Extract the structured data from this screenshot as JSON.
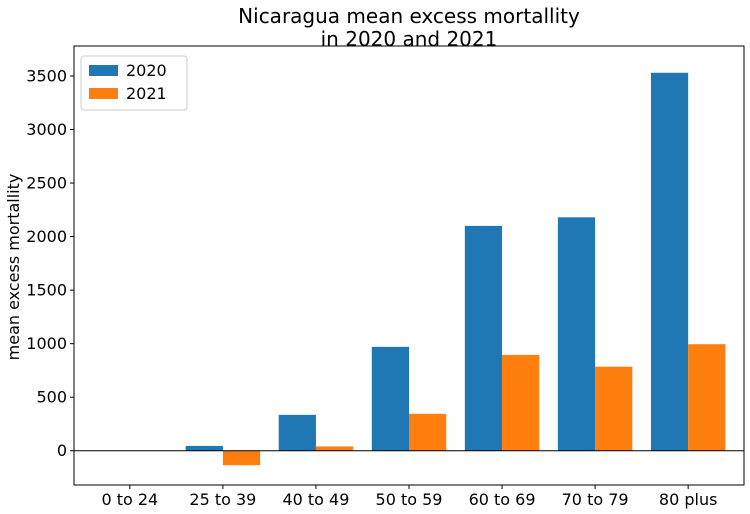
{
  "chart_data": {
    "type": "bar",
    "title": [
      "Nicaragua mean excess mortallity",
      "in 2020 and 2021"
    ],
    "xlabel": "",
    "ylabel": "mean excess mortallity",
    "categories": [
      "0 to 24",
      "25 to 39",
      "40 to 49",
      "50 to 59",
      "60 to 69",
      "70 to 79",
      "80 plus"
    ],
    "series": [
      {
        "name": "2020",
        "color": "#1f77b4",
        "values": [
          0,
          45,
          335,
          970,
          2100,
          2180,
          3530
        ]
      },
      {
        "name": "2021",
        "color": "#ff7f0e",
        "values": [
          0,
          -135,
          40,
          345,
          895,
          785,
          995
        ]
      }
    ],
    "ylim": [
      -320,
      3780
    ],
    "yticks": [
      0,
      500,
      1000,
      1500,
      2000,
      2500,
      3000,
      3500
    ],
    "legend": "top-left",
    "grid": false,
    "zero_line": true
  }
}
